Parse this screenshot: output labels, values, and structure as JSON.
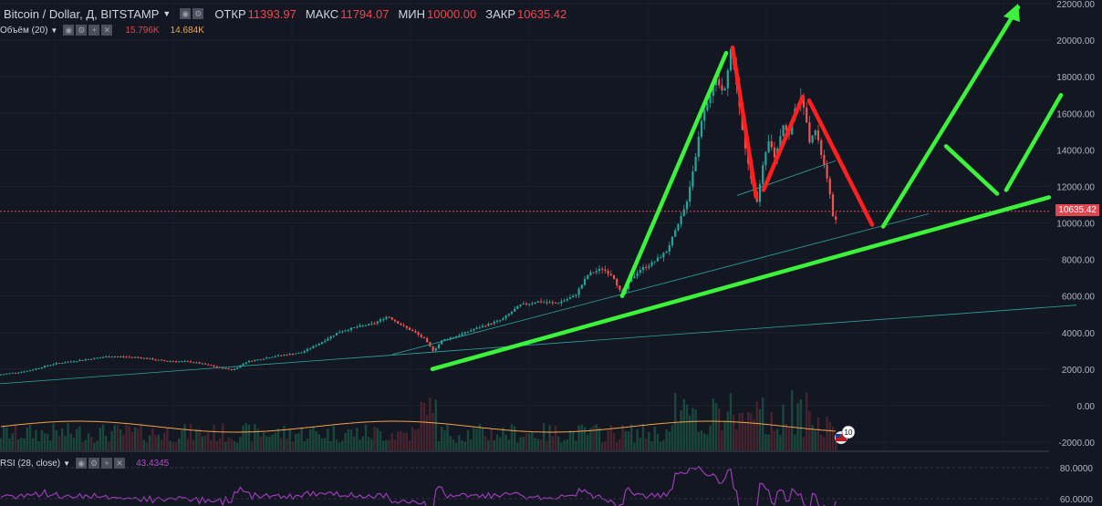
{
  "header": {
    "symbol": "Bitcoin / Dollar, Д, BITSTAMP",
    "open_label": "ОТКР",
    "open_value": "11393.97",
    "high_label": "МАКС",
    "high_value": "11794.07",
    "low_label": "МИН",
    "low_value": "10000.00",
    "close_label": "ЗАКР",
    "close_value": "10635.42"
  },
  "volume": {
    "name": "Объём (20)",
    "value1": "15.796K",
    "value2": "14.684K"
  },
  "rsi": {
    "name": "RSI (28, close)",
    "value": "43.4345"
  },
  "current_price": "10635.42",
  "event_badge": "10",
  "colors": {
    "background": "#131722",
    "up": "#26a69a",
    "down": "#ef5350",
    "trend_green": "#3cf23c",
    "trend_red": "#ff1f1f",
    "rsi": "#9b3cb8"
  },
  "chart_data": {
    "type": "candlestick",
    "price_axis": {
      "min": -2000,
      "max": 22000,
      "ticks": [
        "22000.00",
        "20000.00",
        "18000.00",
        "16000.00",
        "14000.00",
        "12000.00",
        "10000.00",
        "8000.00",
        "6000.00",
        "4000.00",
        "2000.00",
        "0.00",
        "-2000.00"
      ]
    },
    "rsi_axis": {
      "ticks": [
        "80.0000",
        "60.0000"
      ]
    },
    "price_path": [
      [
        0,
        1700
      ],
      [
        30,
        1900
      ],
      [
        60,
        2300
      ],
      [
        90,
        2500
      ],
      [
        120,
        2700
      ],
      [
        150,
        2650
      ],
      [
        180,
        2450
      ],
      [
        210,
        2400
      ],
      [
        240,
        2100
      ],
      [
        255,
        1950
      ],
      [
        270,
        2400
      ],
      [
        300,
        2700
      ],
      [
        330,
        2900
      ],
      [
        350,
        3400
      ],
      [
        370,
        4000
      ],
      [
        390,
        4300
      ],
      [
        410,
        4500
      ],
      [
        425,
        4900
      ],
      [
        440,
        4400
      ],
      [
        455,
        4000
      ],
      [
        465,
        3650
      ],
      [
        475,
        3000
      ],
      [
        485,
        3600
      ],
      [
        500,
        3800
      ],
      [
        520,
        4200
      ],
      [
        550,
        4700
      ],
      [
        570,
        5500
      ],
      [
        590,
        5700
      ],
      [
        610,
        5600
      ],
      [
        630,
        6000
      ],
      [
        645,
        7200
      ],
      [
        660,
        7500
      ],
      [
        672,
        7100
      ],
      [
        682,
        6000
      ],
      [
        690,
        6800
      ],
      [
        700,
        7400
      ],
      [
        715,
        7800
      ],
      [
        730,
        8400
      ],
      [
        742,
        9700
      ],
      [
        752,
        11000
      ],
      [
        762,
        13500
      ],
      [
        770,
        16000
      ],
      [
        778,
        17000
      ],
      [
        786,
        17800
      ],
      [
        793,
        17000
      ],
      [
        801,
        19500
      ],
      [
        808,
        17500
      ],
      [
        815,
        14500
      ],
      [
        823,
        12500
      ],
      [
        830,
        11200
      ],
      [
        836,
        13000
      ],
      [
        843,
        14500
      ],
      [
        850,
        13500
      ],
      [
        858,
        15500
      ],
      [
        865,
        14800
      ],
      [
        872,
        16500
      ],
      [
        880,
        16800
      ],
      [
        887,
        14500
      ],
      [
        893,
        15200
      ],
      [
        900,
        13800
      ],
      [
        905,
        12800
      ],
      [
        910,
        11400
      ],
      [
        915,
        9800
      ],
      [
        918,
        10600
      ]
    ],
    "trend_lines": [
      {
        "color": "green",
        "points": [
          [
            474,
            2000
          ],
          [
            1150,
            11400
          ]
        ]
      },
      {
        "color": "green",
        "points": [
          [
            682,
            6000
          ],
          [
            796,
            19300
          ]
        ]
      },
      {
        "color": "red",
        "points": [
          [
            803,
            19600
          ],
          [
            829,
            11400
          ]
        ]
      },
      {
        "color": "red",
        "points": [
          [
            837,
            11800
          ],
          [
            880,
            16900
          ]
        ]
      },
      {
        "color": "red",
        "points": [
          [
            887,
            16700
          ],
          [
            956,
            9900
          ]
        ]
      },
      {
        "color": "green",
        "points": [
          [
            968,
            9800
          ],
          [
            1116,
            21800
          ]
        ]
      },
      {
        "color": "green",
        "points": [
          [
            1037,
            14200
          ],
          [
            1093,
            11600
          ]
        ]
      },
      {
        "color": "green",
        "points": [
          [
            1103,
            11800
          ],
          [
            1163,
            17000
          ]
        ]
      }
    ],
    "thin_lines": [
      {
        "points": [
          [
            0,
            1200
          ],
          [
            1180,
            5500
          ]
        ]
      },
      {
        "points": [
          [
            430,
            2800
          ],
          [
            1018,
            10500
          ]
        ]
      },
      {
        "points": [
          [
            808,
            11500
          ],
          [
            916,
            13400
          ]
        ]
      }
    ]
  }
}
